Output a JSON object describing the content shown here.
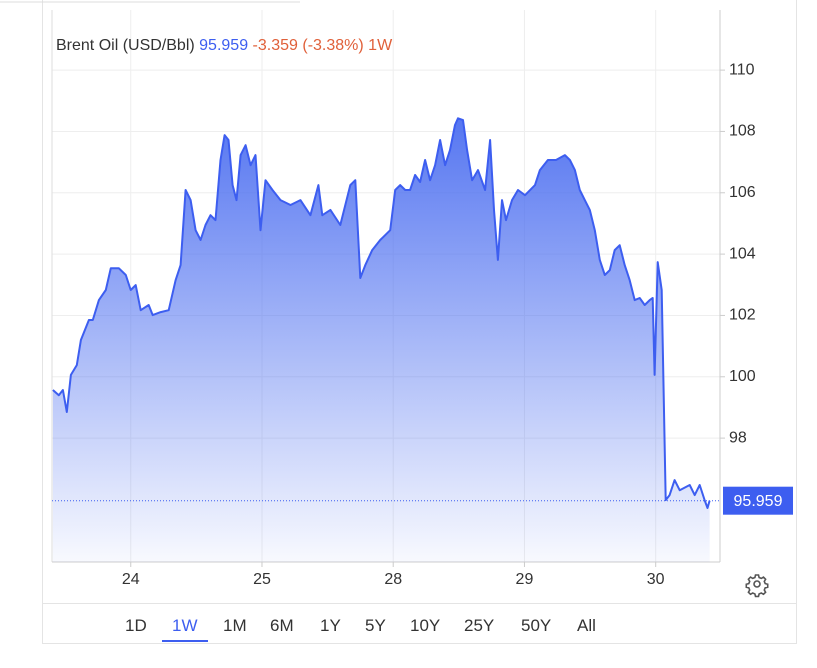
{
  "chart_data": {
    "type": "area",
    "title": "Brent Oil (USD/Bbl)",
    "change_label": "-3.359 (-3.38%)",
    "period": "1W",
    "series": [
      {
        "name": "Brent Oil",
        "color": "#3d5ef0",
        "x": [
          -0.593,
          -0.548,
          -0.517,
          -0.487,
          -0.456,
          -0.411,
          -0.38,
          -0.319,
          -0.289,
          -0.243,
          -0.19,
          -0.152,
          -0.091,
          -0.038,
          0,
          0.038,
          0.076,
          0.137,
          0.167,
          0.228,
          0.289,
          0.342,
          0.38,
          0.418,
          0.456,
          0.494,
          0.532,
          0.57,
          0.608,
          0.646,
          0.684,
          0.715,
          0.745,
          0.776,
          0.806,
          0.837,
          0.875,
          0.913,
          0.951,
          0.989,
          1.027,
          1.08,
          1.141,
          1.217,
          1.293,
          1.369,
          1.43,
          1.46,
          1.521,
          1.597,
          1.673,
          1.711,
          1.749,
          1.787,
          1.84,
          1.901,
          1.977,
          2.015,
          2.053,
          2.091,
          2.129,
          2.167,
          2.205,
          2.243,
          2.281,
          2.319,
          2.357,
          2.395,
          2.433,
          2.471,
          2.494,
          2.532,
          2.563,
          2.601,
          2.646,
          2.7,
          2.738,
          2.768,
          2.798,
          2.829,
          2.859,
          2.905,
          2.951,
          3.004,
          3.08,
          3.118,
          3.179,
          3.24,
          3.308,
          3.346,
          3.384,
          3.422,
          3.46,
          3.498,
          3.536,
          3.574,
          3.612,
          3.65,
          3.688,
          3.726,
          3.764,
          3.802,
          3.84,
          3.878,
          3.916,
          3.954,
          3.977,
          3.992,
          4.015,
          4.046,
          4.076,
          4.106,
          4.144,
          4.183,
          4.259,
          4.297,
          4.335,
          4.373,
          4.395,
          4.411
        ],
        "values": [
          99.57,
          99.4,
          99.57,
          98.85,
          100.06,
          100.38,
          101.2,
          101.85,
          101.85,
          102.5,
          102.83,
          103.54,
          103.54,
          103.32,
          102.83,
          102.99,
          102.17,
          102.34,
          102.01,
          102.11,
          102.17,
          103.15,
          103.64,
          106.09,
          105.76,
          104.78,
          104.46,
          104.95,
          105.27,
          105.11,
          107.07,
          107.88,
          107.72,
          106.25,
          105.76,
          107.23,
          107.55,
          106.9,
          107.23,
          104.78,
          106.41,
          106.09,
          105.76,
          105.6,
          105.76,
          105.27,
          106.25,
          105.27,
          105.44,
          104.95,
          106.25,
          106.41,
          103.22,
          103.64,
          104.13,
          104.46,
          104.78,
          106.09,
          106.25,
          106.09,
          106.09,
          106.58,
          106.35,
          107.07,
          106.41,
          106.9,
          107.72,
          106.9,
          107.39,
          108.21,
          108.43,
          108.37,
          107.39,
          106.41,
          106.74,
          106.09,
          107.72,
          105.44,
          103.81,
          105.76,
          105.11,
          105.76,
          106.09,
          105.92,
          106.25,
          106.74,
          107.07,
          107.07,
          107.23,
          107.07,
          106.74,
          106.09,
          105.76,
          105.44,
          104.78,
          103.81,
          103.32,
          103.48,
          104.13,
          104.29,
          103.64,
          103.15,
          102.5,
          102.57,
          102.34,
          102.5,
          102.57,
          100.06,
          103.74,
          102.83,
          95.98,
          96.14,
          96.63,
          96.3,
          96.47,
          96.14,
          96.47,
          95.98,
          95.72,
          95.959
        ]
      }
    ],
    "xlim": [
      -0.6,
      4.49
    ],
    "xticks": [
      {
        "value": 0,
        "label": "24"
      },
      {
        "value": 1,
        "label": "25"
      },
      {
        "value": 2,
        "label": "28"
      },
      {
        "value": 3,
        "label": "29"
      },
      {
        "value": 4,
        "label": "30"
      }
    ],
    "ylim": [
      93.96,
      111.96
    ],
    "yticks": [
      98,
      100,
      102,
      104,
      106,
      108,
      110
    ],
    "grid": true
  },
  "range_selector": {
    "options": [
      "1D",
      "1W",
      "1M",
      "6M",
      "1Y",
      "5Y",
      "10Y",
      "25Y",
      "50Y",
      "All"
    ],
    "selected": "1W"
  }
}
